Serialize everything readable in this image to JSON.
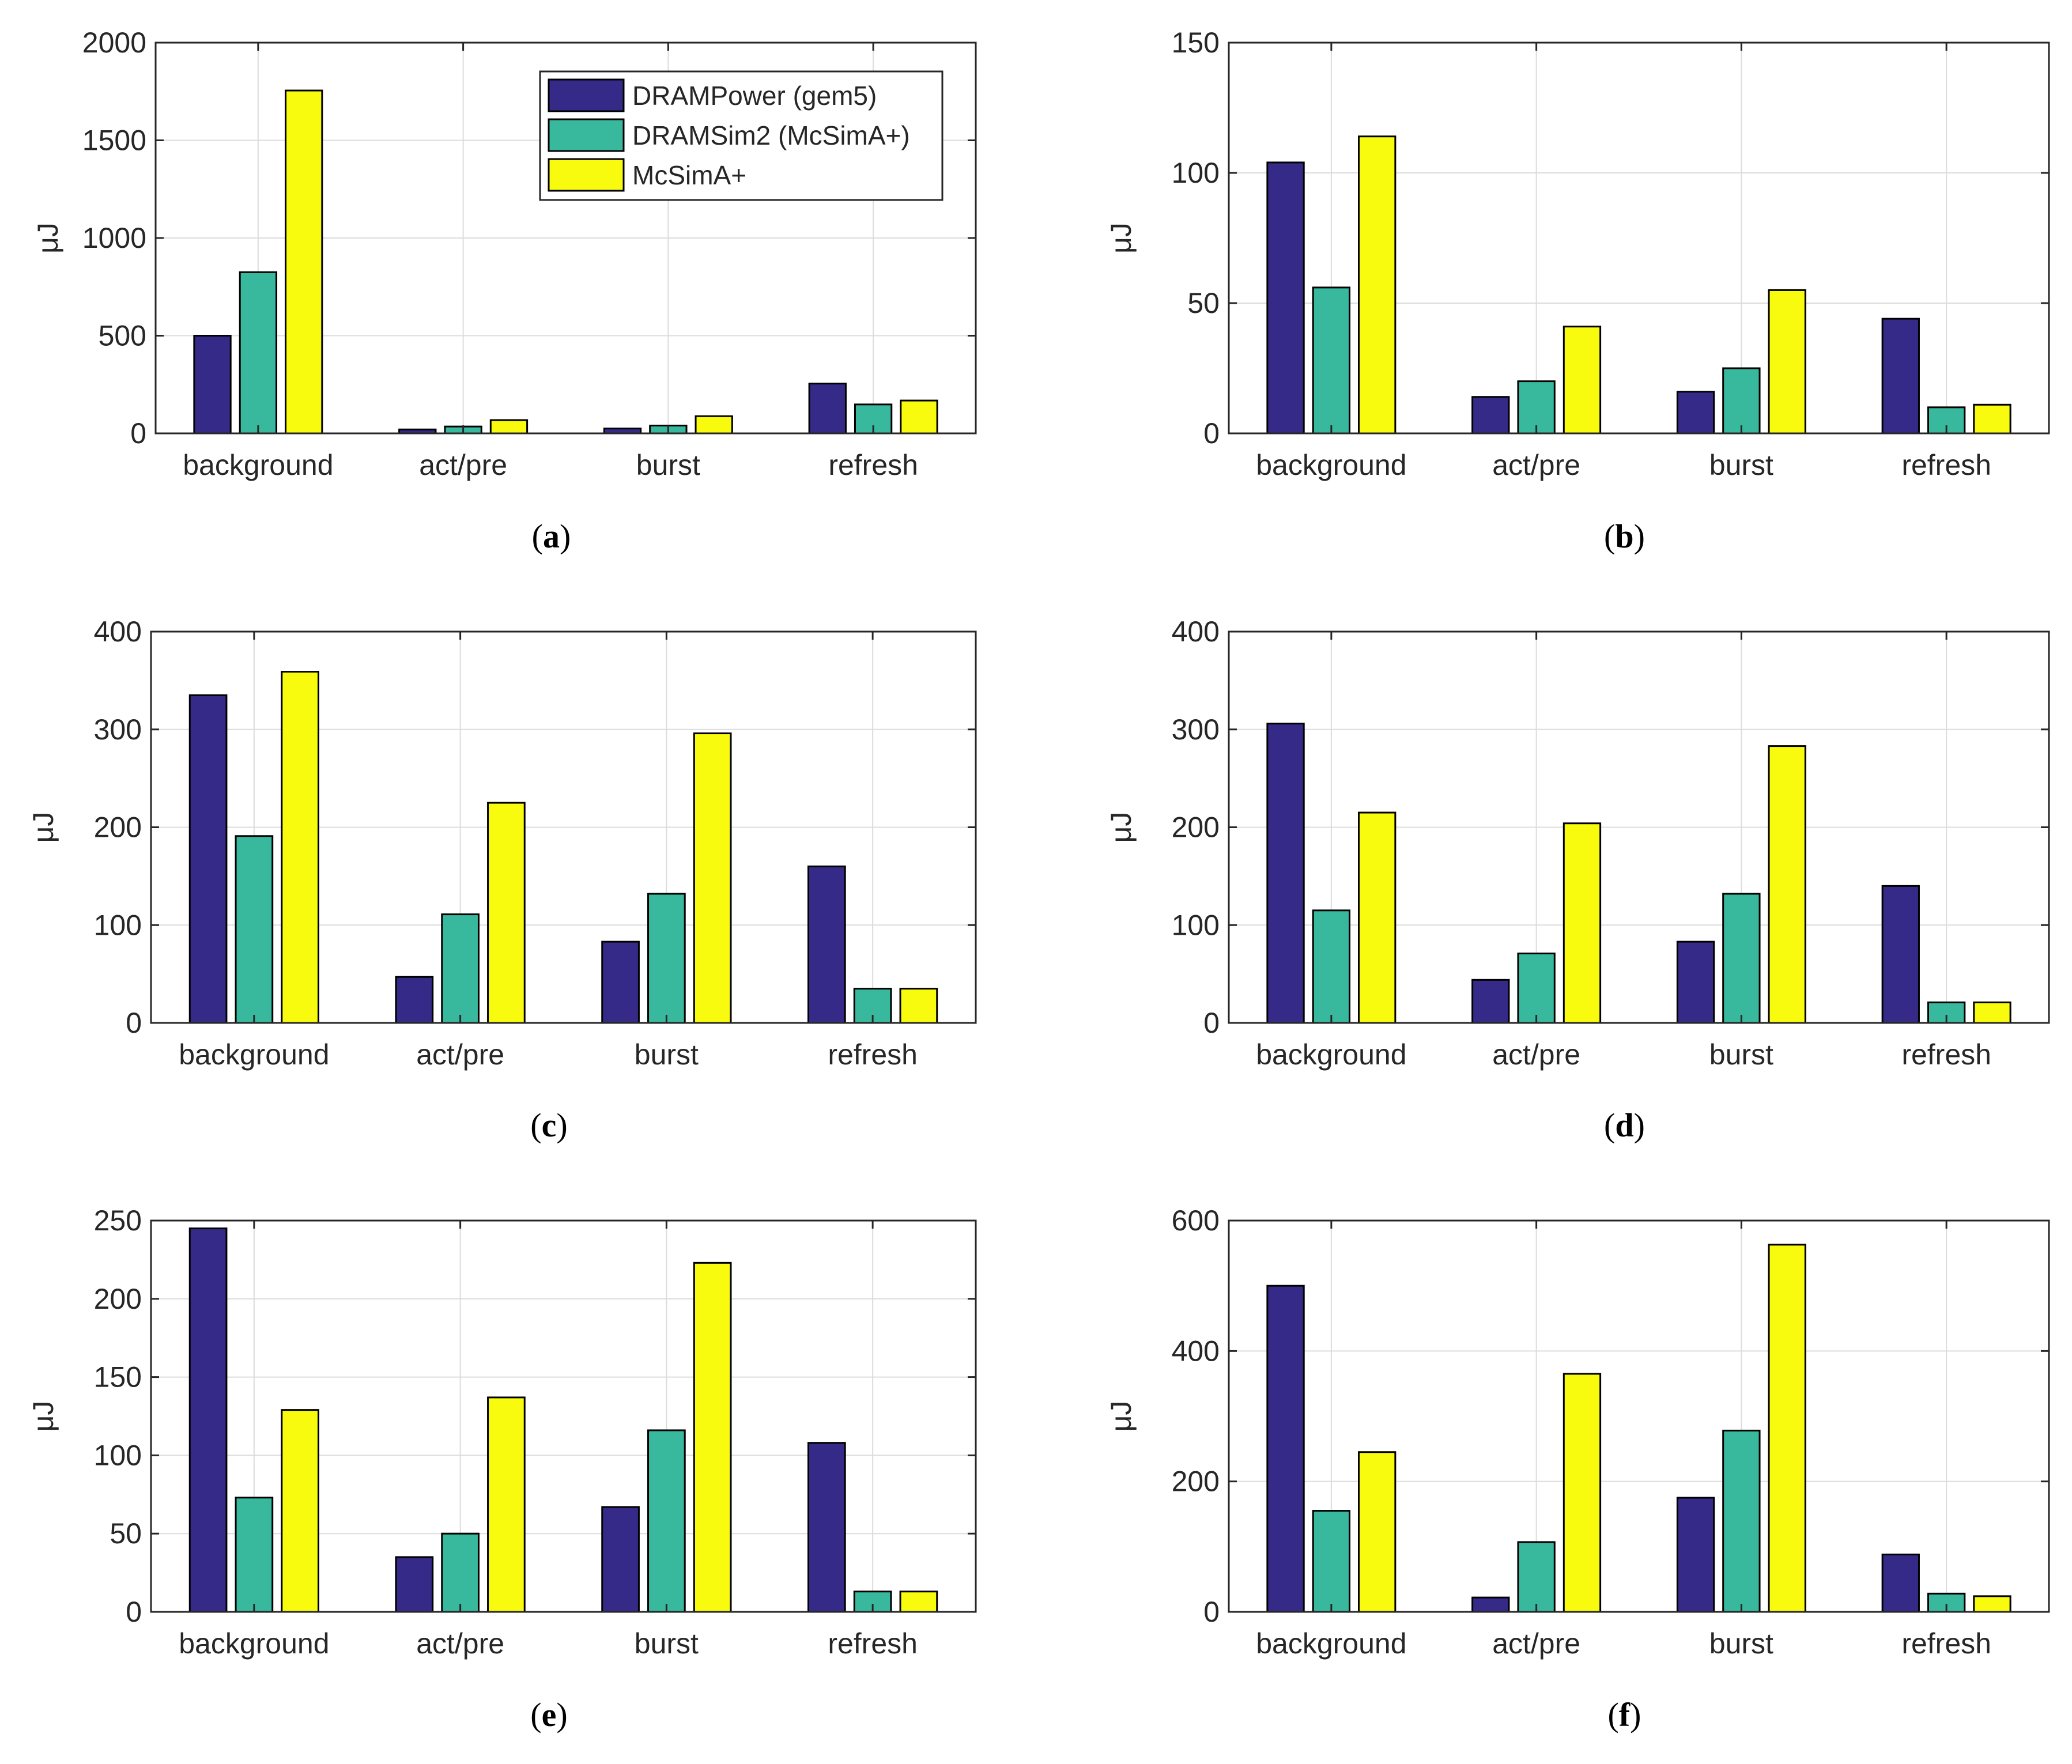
{
  "legend": {
    "entries": [
      {
        "name": "DRAMPower (gem5)",
        "color": "#352a87"
      },
      {
        "name": "DRAMSim2 (McSimA+)",
        "color": "#38b99e"
      },
      {
        "name": "McSimA+",
        "color": "#f9fb0e"
      }
    ],
    "placement": "top-right of panel (a)"
  },
  "chart_data": [
    {
      "type": "bar",
      "panel": "a",
      "caption": "a",
      "ylabel": "μJ",
      "categories": [
        "background",
        "act/pre",
        "burst",
        "refresh"
      ],
      "ylim": [
        0,
        2000
      ],
      "yticks": [
        0,
        500,
        1000,
        1500,
        2000
      ],
      "grid": true,
      "series": [
        {
          "name": "DRAMPower (gem5)",
          "values": [
            500,
            20,
            25,
            255
          ]
        },
        {
          "name": "DRAMSim2 (McSimA+)",
          "values": [
            825,
            35,
            40,
            148
          ]
        },
        {
          "name": "McSimA+",
          "values": [
            1755,
            68,
            88,
            168
          ]
        }
      ]
    },
    {
      "type": "bar",
      "panel": "b",
      "caption": "b",
      "ylabel": "μJ",
      "categories": [
        "background",
        "act/pre",
        "burst",
        "refresh"
      ],
      "ylim": [
        0,
        150
      ],
      "yticks": [
        0,
        50,
        100,
        150
      ],
      "grid": true,
      "series": [
        {
          "name": "DRAMPower (gem5)",
          "values": [
            104,
            14,
            16,
            44
          ]
        },
        {
          "name": "DRAMSim2 (McSimA+)",
          "values": [
            56,
            20,
            25,
            10
          ]
        },
        {
          "name": "McSimA+",
          "values": [
            114,
            41,
            55,
            11
          ]
        }
      ]
    },
    {
      "type": "bar",
      "panel": "c",
      "caption": "c",
      "ylabel": "μJ",
      "categories": [
        "background",
        "act/pre",
        "burst",
        "refresh"
      ],
      "ylim": [
        0,
        400
      ],
      "yticks": [
        0,
        100,
        200,
        300,
        400
      ],
      "grid": true,
      "series": [
        {
          "name": "DRAMPower (gem5)",
          "values": [
            335,
            47,
            83,
            160
          ]
        },
        {
          "name": "DRAMSim2 (McSimA+)",
          "values": [
            191,
            111,
            132,
            35
          ]
        },
        {
          "name": "McSimA+",
          "values": [
            359,
            225,
            296,
            35
          ]
        }
      ]
    },
    {
      "type": "bar",
      "panel": "d",
      "caption": "d",
      "ylabel": "μJ",
      "categories": [
        "background",
        "act/pre",
        "burst",
        "refresh"
      ],
      "ylim": [
        0,
        400
      ],
      "yticks": [
        0,
        100,
        200,
        300,
        400
      ],
      "grid": true,
      "series": [
        {
          "name": "DRAMPower (gem5)",
          "values": [
            306,
            44,
            83,
            140
          ]
        },
        {
          "name": "DRAMSim2 (McSimA+)",
          "values": [
            115,
            71,
            132,
            21
          ]
        },
        {
          "name": "McSimA+",
          "values": [
            215,
            204,
            283,
            21
          ]
        }
      ]
    },
    {
      "type": "bar",
      "panel": "e",
      "caption": "e",
      "ylabel": "μJ",
      "categories": [
        "background",
        "act/pre",
        "burst",
        "refresh"
      ],
      "ylim": [
        0,
        250
      ],
      "yticks": [
        0,
        50,
        100,
        150,
        200,
        250
      ],
      "grid": true,
      "series": [
        {
          "name": "DRAMPower (gem5)",
          "values": [
            245,
            35,
            67,
            108
          ]
        },
        {
          "name": "DRAMSim2 (McSimA+)",
          "values": [
            73,
            50,
            116,
            13
          ]
        },
        {
          "name": "McSimA+",
          "values": [
            129,
            137,
            223,
            13
          ]
        }
      ]
    },
    {
      "type": "bar",
      "panel": "f",
      "caption": "f",
      "ylabel": "μJ",
      "categories": [
        "background",
        "act/pre",
        "burst",
        "refresh"
      ],
      "ylim": [
        0,
        600
      ],
      "yticks": [
        0,
        200,
        400,
        600
      ],
      "grid": true,
      "series": [
        {
          "name": "DRAMPower (gem5)",
          "values": [
            500,
            22,
            175,
            88
          ]
        },
        {
          "name": "DRAMSim2 (McSimA+)",
          "values": [
            155,
            107,
            278,
            28
          ]
        },
        {
          "name": "McSimA+",
          "values": [
            245,
            365,
            563,
            24
          ]
        }
      ]
    }
  ]
}
